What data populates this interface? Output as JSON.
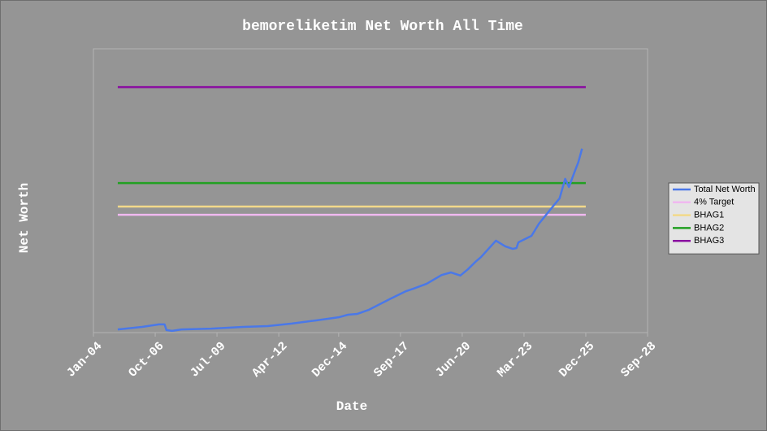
{
  "chart_data": {
    "type": "line",
    "title": "bemoreliketim Net Worth All Time",
    "x_label": "Date",
    "y_label": "Net Worth",
    "xlim": [
      "2004-01",
      "2028-09"
    ],
    "xticks": [
      {
        "value": "2004-01",
        "label": "Jan-04"
      },
      {
        "value": "2006-10",
        "label": "Oct-06"
      },
      {
        "value": "2009-07",
        "label": "Jul-09"
      },
      {
        "value": "2012-04",
        "label": "Apr-12"
      },
      {
        "value": "2014-12",
        "label": "Dec-14"
      },
      {
        "value": "2017-09",
        "label": "Sep-17"
      },
      {
        "value": "2020-06",
        "label": "Jun-20"
      },
      {
        "value": "2023-03",
        "label": "Mar-23"
      },
      {
        "value": "2025-12",
        "label": "Dec-25"
      },
      {
        "value": "2028-09",
        "label": "Sep-28"
      }
    ],
    "ylim": [
      0,
      100
    ],
    "grid": false,
    "legend": "right",
    "series": [
      {
        "name": "Total Net Worth",
        "color": "#4a78e8",
        "x": [
          "2005-02",
          "2006-03",
          "2006-12",
          "2007-03",
          "2007-04",
          "2007-07",
          "2007-12",
          "2009-04",
          "2010-09",
          "2011-10",
          "2012-11",
          "2013-12",
          "2014-12",
          "2015-05",
          "2015-10",
          "2016-04",
          "2017-03",
          "2017-12",
          "2018-04",
          "2018-11",
          "2019-07",
          "2019-12",
          "2020-05",
          "2020-09",
          "2021-01",
          "2021-04",
          "2021-12",
          "2022-05",
          "2022-09",
          "2022-11",
          "2022-12",
          "2023-07",
          "2023-11",
          "2024-06",
          "2024-10",
          "2025-01",
          "2025-03",
          "2025-06",
          "2025-08",
          "2025-10"
        ],
        "values": [
          1.1,
          2.0,
          2.9,
          2.9,
          0.9,
          0.6,
          1.1,
          1.4,
          2.0,
          2.3,
          3.2,
          4.3,
          5.4,
          6.3,
          6.6,
          8.0,
          11.7,
          14.6,
          15.5,
          17.2,
          20.3,
          21.2,
          20.1,
          22.3,
          24.9,
          26.6,
          32.4,
          30.4,
          29.5,
          29.8,
          31.8,
          34.1,
          38.4,
          44.1,
          47.3,
          54.2,
          51.3,
          56.6,
          60.0,
          64.8
        ]
      },
      {
        "name": "4% Target",
        "color": "#f0b8f0",
        "x": [
          "2005-02",
          "2025-12"
        ],
        "values": [
          41.5,
          41.5
        ]
      },
      {
        "name": "BHAG1",
        "color": "#f2d98a",
        "x": [
          "2005-02",
          "2025-12"
        ],
        "values": [
          44.4,
          44.4
        ]
      },
      {
        "name": "BHAG2",
        "color": "#22a022",
        "x": [
          "2005-02",
          "2025-12"
        ],
        "values": [
          52.7,
          52.7
        ]
      },
      {
        "name": "BHAG3",
        "color": "#8a10a0",
        "x": [
          "2005-02",
          "2025-12"
        ],
        "values": [
          86.5,
          86.5
        ]
      }
    ]
  }
}
